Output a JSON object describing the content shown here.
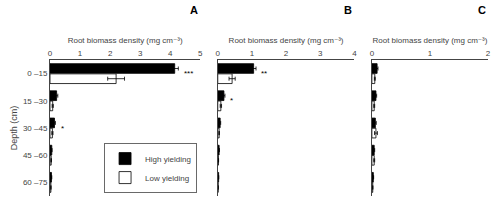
{
  "chart_data": [
    {
      "type": "bar",
      "orientation": "horizontal",
      "title": "A",
      "xlabel": "Root biomass density (mg cm⁻³)",
      "ylabel": "Depth (cm)",
      "categories": [
        "0 –15",
        "15 –30",
        "30 –45",
        "45 –60",
        "60 –75"
      ],
      "series": [
        {
          "name": "High yielding",
          "color": "black",
          "values": [
            4.15,
            0.22,
            0.15,
            0.06,
            0.05
          ],
          "errors": [
            0.12,
            0.04,
            0.03,
            0.01,
            0.01
          ]
        },
        {
          "name": "Low yielding",
          "color": "white",
          "values": [
            2.2,
            0.09,
            0.08,
            0.04,
            0.03
          ],
          "errors": [
            0.28,
            0.02,
            0.02,
            0.01,
            0.005
          ]
        }
      ],
      "annotations": [
        {
          "category": "0 –15",
          "text": "***"
        },
        {
          "category": "30 –45",
          "text": "*"
        }
      ],
      "xlim": [
        0,
        5
      ],
      "xticks": [
        0,
        1,
        2,
        3,
        4,
        5
      ],
      "grid": false,
      "legend": "lower right"
    },
    {
      "type": "bar",
      "orientation": "horizontal",
      "title": "B",
      "xlabel": "Root biomass density (mg cm⁻³)",
      "categories": [
        "0 –15",
        "15 –30",
        "30 –45",
        "45 –60",
        "60 –75"
      ],
      "series": [
        {
          "name": "High yielding",
          "color": "black",
          "values": [
            1.05,
            0.18,
            0.07,
            0.04,
            0.025
          ],
          "errors": [
            0.07,
            0.03,
            0.015,
            0.008,
            0.004
          ]
        },
        {
          "name": "Low yielding",
          "color": "white",
          "values": [
            0.42,
            0.09,
            0.04,
            0.02,
            0.012
          ],
          "errors": [
            0.09,
            0.02,
            0.008,
            0.004,
            0.003
          ]
        }
      ],
      "annotations": [
        {
          "category": "0 –15",
          "text": "**"
        },
        {
          "category": "15 –30",
          "text": "*"
        }
      ],
      "xlim": [
        0,
        4
      ],
      "xticks": [
        0,
        1,
        2,
        3,
        4
      ],
      "grid": false,
      "legend": false,
      "tick_labels": "x"
    },
    {
      "type": "bar",
      "orientation": "horizontal",
      "title": "C",
      "xlabel": "Root biomass density (mg cm⁻³)",
      "categories": [
        "0 –15",
        "15 –30",
        "30 –45",
        "45 –60",
        "60 –75"
      ],
      "series": [
        {
          "name": "High yielding",
          "color": "black",
          "values": [
            0.09,
            0.07,
            0.06,
            0.04,
            0.025
          ],
          "errors": [
            0.015,
            0.012,
            0.015,
            0.008,
            0.005
          ]
        },
        {
          "name": "Low yielding",
          "color": "white",
          "values": [
            0.05,
            0.04,
            0.07,
            0.04,
            0.015
          ],
          "errors": [
            0.008,
            0.008,
            0.025,
            0.008,
            0.004
          ]
        }
      ],
      "xlim": [
        0,
        2
      ],
      "xticks": [
        0,
        1,
        2
      ],
      "grid": false,
      "legend": false,
      "tick_labels": "x"
    }
  ]
}
